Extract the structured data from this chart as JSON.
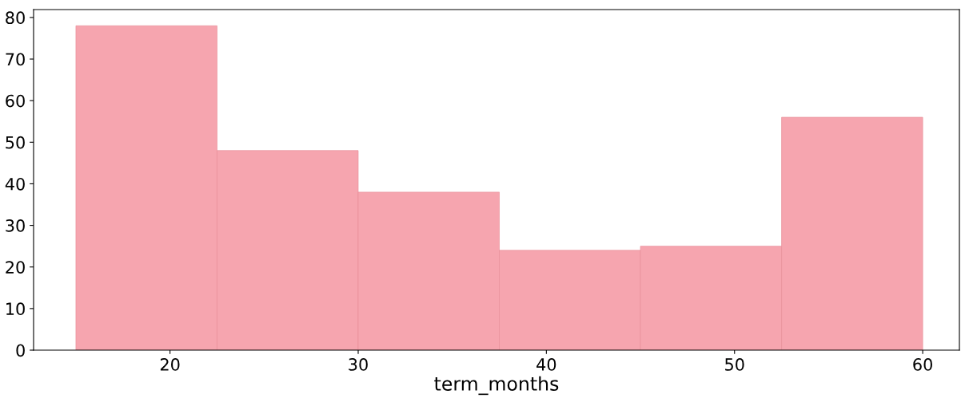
{
  "chart_data": {
    "type": "histogram",
    "xlabel": "term_months",
    "bins": [
      15,
      22.5,
      30,
      37.5,
      45,
      52.5,
      60
    ],
    "values": [
      78,
      48,
      38,
      24,
      25,
      56
    ],
    "color": "#f6a5af",
    "xlim": [
      12.75,
      61.95
    ],
    "xticks": [
      20,
      30,
      40,
      50,
      60
    ],
    "ylim": [
      0,
      81.9
    ],
    "yticks": [
      0,
      10,
      20,
      30,
      40,
      50,
      60,
      70,
      80
    ],
    "grid": false
  }
}
